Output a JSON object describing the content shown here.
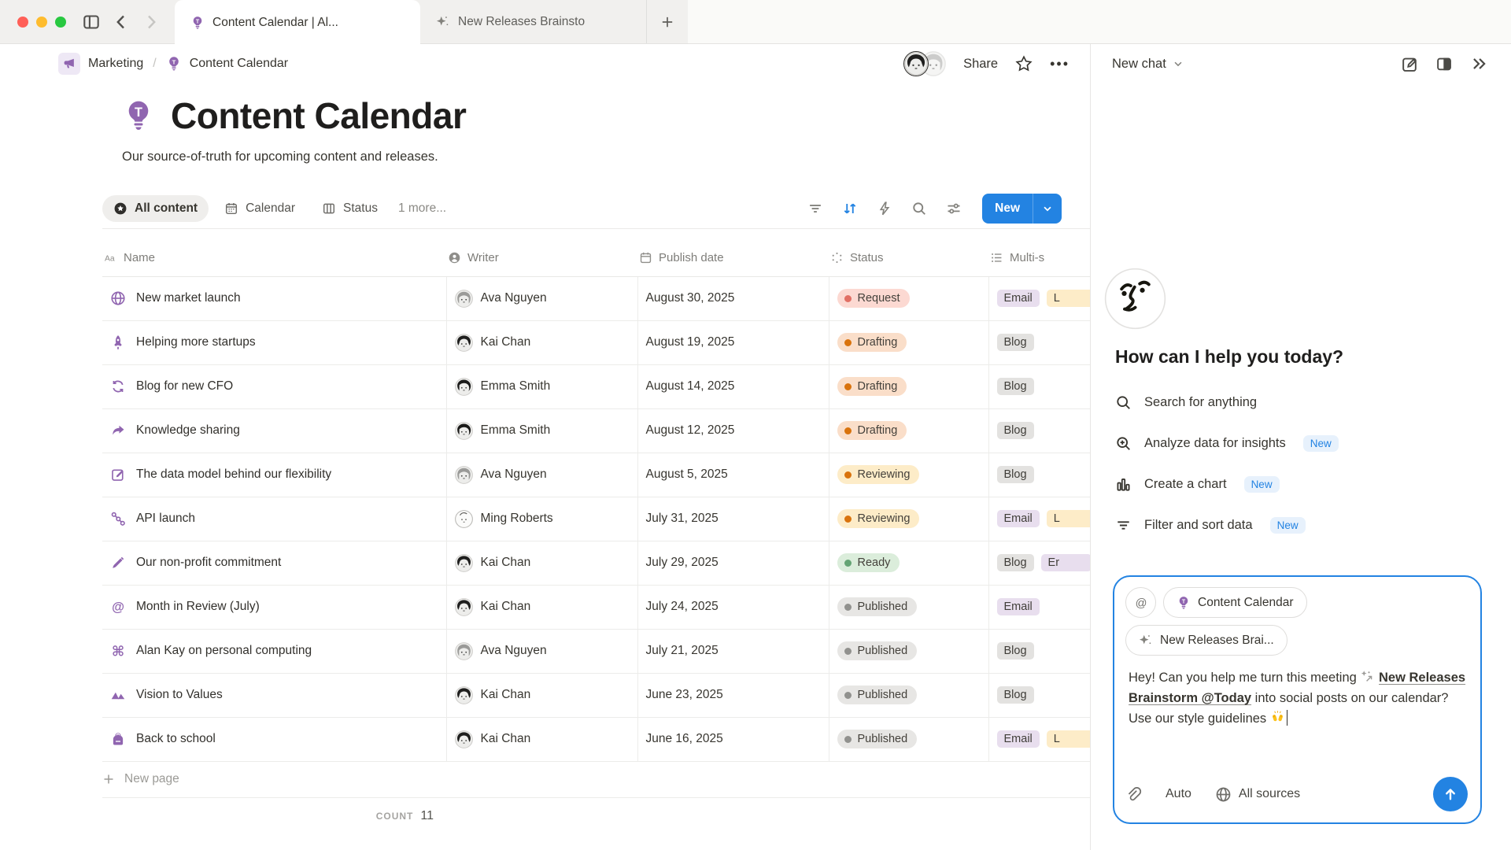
{
  "window": {
    "tabs": [
      {
        "label": "Content Calendar | Al...",
        "icon": "lightbulb",
        "active": true
      },
      {
        "label": "New Releases Brainsto",
        "icon": "sparkles",
        "active": false
      }
    ]
  },
  "topbar": {
    "breadcrumb": [
      {
        "label": "Marketing",
        "icon": "megaphone"
      },
      {
        "label": "Content Calendar",
        "icon": "lightbulb"
      }
    ],
    "share_label": "Share"
  },
  "page": {
    "title": "Content Calendar",
    "icon": "lightbulb",
    "subtitle": "Our source-of-truth for upcoming content and releases.",
    "views": [
      {
        "label": "All content",
        "icon": "star-circle",
        "active": true
      },
      {
        "label": "Calendar",
        "icon": "calendar-view",
        "active": false
      },
      {
        "label": "Status",
        "icon": "board-view",
        "active": false
      }
    ],
    "more_views_label": "1 more...",
    "new_button_label": "New"
  },
  "table": {
    "columns": [
      {
        "label": "Name",
        "icon": "aa"
      },
      {
        "label": "Writer",
        "icon": "person"
      },
      {
        "label": "Publish date",
        "icon": "calendar"
      },
      {
        "label": "Status",
        "icon": "status-burst"
      },
      {
        "label": "Multi-s",
        "icon": "list"
      }
    ],
    "rows": [
      {
        "icon": "globe",
        "name": "New market launch",
        "writer": "Ava Nguyen",
        "avatar": "ava",
        "date": "August 30, 2025",
        "status": "Request",
        "status_color": "red",
        "tags": [
          {
            "label": "Email",
            "color": "purple"
          },
          {
            "label": "L",
            "color": "yellow",
            "clipped": true
          }
        ]
      },
      {
        "icon": "rocket",
        "name": "Helping more startups",
        "writer": "Kai Chan",
        "avatar": "kai",
        "date": "August 19, 2025",
        "status": "Drafting",
        "status_color": "orange",
        "tags": [
          {
            "label": "Blog",
            "color": "gray"
          }
        ]
      },
      {
        "icon": "cycle",
        "name": "Blog for new CFO",
        "writer": "Emma Smith",
        "avatar": "emma",
        "date": "August 14, 2025",
        "status": "Drafting",
        "status_color": "orange",
        "tags": [
          {
            "label": "Blog",
            "color": "gray"
          }
        ]
      },
      {
        "icon": "share-arrow",
        "name": "Knowledge sharing",
        "writer": "Emma Smith",
        "avatar": "emma",
        "date": "August 12, 2025",
        "status": "Drafting",
        "status_color": "orange",
        "tags": [
          {
            "label": "Blog",
            "color": "gray"
          }
        ]
      },
      {
        "icon": "edit-square",
        "name": "The data model behind our flexibility",
        "writer": "Ava Nguyen",
        "avatar": "ava",
        "date": "August 5, 2025",
        "status": "Reviewing",
        "status_color": "yellow",
        "tags": [
          {
            "label": "Blog",
            "color": "gray"
          }
        ]
      },
      {
        "icon": "share-nodes",
        "name": "API launch",
        "writer": "Ming Roberts",
        "avatar": "ming",
        "date": "July 31, 2025",
        "status": "Reviewing",
        "status_color": "yellow",
        "tags": [
          {
            "label": "Email",
            "color": "purple"
          },
          {
            "label": "L",
            "color": "yellow",
            "clipped": true
          }
        ]
      },
      {
        "icon": "pen",
        "name": "Our non-profit commitment",
        "writer": "Kai Chan",
        "avatar": "kai",
        "date": "July 29, 2025",
        "status": "Ready",
        "status_color": "green",
        "tags": [
          {
            "label": "Blog",
            "color": "gray"
          },
          {
            "label": "Er",
            "color": "purple",
            "clipped": true
          }
        ]
      },
      {
        "icon": "at",
        "name": "Month in Review (July)",
        "writer": "Kai Chan",
        "avatar": "kai",
        "date": "July 24, 2025",
        "status": "Published",
        "status_color": "gray",
        "tags": [
          {
            "label": "Email",
            "color": "purple"
          }
        ]
      },
      {
        "icon": "command",
        "name": "Alan Kay on personal computing",
        "writer": "Ava Nguyen",
        "avatar": "ava",
        "date": "July 21, 2025",
        "status": "Published",
        "status_color": "gray",
        "tags": [
          {
            "label": "Blog",
            "color": "gray"
          }
        ]
      },
      {
        "icon": "mountains",
        "name": "Vision to Values",
        "writer": "Kai Chan",
        "avatar": "kai",
        "date": "June 23, 2025",
        "status": "Published",
        "status_color": "gray",
        "tags": [
          {
            "label": "Blog",
            "color": "gray"
          }
        ]
      },
      {
        "icon": "backpack",
        "name": "Back to school",
        "writer": "Kai Chan",
        "avatar": "kai",
        "date": "June 16, 2025",
        "status": "Published",
        "status_color": "gray",
        "tags": [
          {
            "label": "Email",
            "color": "purple"
          },
          {
            "label": "L",
            "color": "yellow",
            "clipped": true
          }
        ]
      }
    ],
    "new_page_label": "New page",
    "count_label": "COUNT",
    "count_value": "11"
  },
  "assistant": {
    "header_label": "New chat",
    "greeting": "How can I help you today?",
    "menu": [
      {
        "icon": "search",
        "label": "Search for anything",
        "badge": ""
      },
      {
        "icon": "search-plus",
        "label": "Analyze data for insights",
        "badge": "New"
      },
      {
        "icon": "chart",
        "label": "Create a chart",
        "badge": "New"
      },
      {
        "icon": "filter-lines",
        "label": "Filter and sort data",
        "badge": "New"
      }
    ],
    "composer": {
      "chips": [
        {
          "icon": "at-sign",
          "label": "",
          "round": true
        },
        {
          "icon": "lightbulb",
          "label": "Content Calendar"
        },
        {
          "icon": "sparkles",
          "label": "New Releases Brai..."
        }
      ],
      "message_segments": [
        {
          "type": "text",
          "text": "Hey! Can you help me turn this meeting "
        },
        {
          "type": "icon",
          "name": "ai-sparkle-arrow"
        },
        {
          "type": "text",
          "text": " "
        },
        {
          "type": "link",
          "text": "New Releases Brainstorm @Today"
        },
        {
          "type": "text",
          "text": " into social posts on our calendar? Use our style guidelines "
        },
        {
          "type": "emoji",
          "name": "raising-hands"
        },
        {
          "type": "cursor"
        }
      ],
      "mode_label": "Auto",
      "sources_label": "All sources"
    }
  },
  "colors": {
    "accent_blue": "#2383e2",
    "notion_purple": "#9065b0",
    "status_red": "#e16f64",
    "status_orange": "#d9730d",
    "status_green": "#64a474",
    "status_gray": "#91918e"
  }
}
